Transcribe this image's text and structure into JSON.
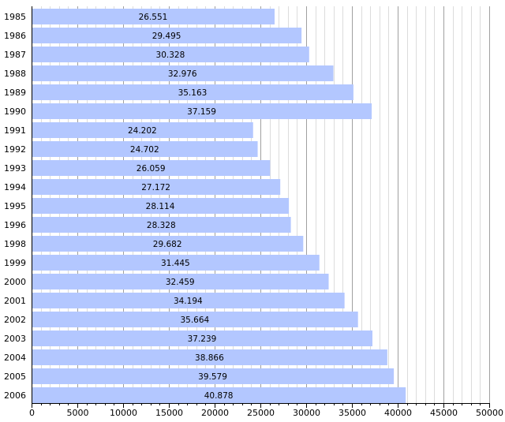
{
  "chart_data": {
    "type": "bar",
    "orientation": "horizontal",
    "categories": [
      "1985",
      "1986",
      "1987",
      "1988",
      "1989",
      "1990",
      "1991",
      "1992",
      "1993",
      "1994",
      "1995",
      "1996",
      "1998",
      "1999",
      "2000",
      "2001",
      "2002",
      "2003",
      "2004",
      "2005",
      "2006"
    ],
    "values": [
      26551,
      29495,
      30328,
      32976,
      35163,
      37159,
      24202,
      24702,
      26059,
      27172,
      28114,
      28328,
      29682,
      31445,
      32459,
      34194,
      35664,
      37239,
      38866,
      39579,
      40878
    ],
    "value_labels": [
      "26.551",
      "29.495",
      "30.328",
      "32.976",
      "35.163",
      "37.159",
      "24.202",
      "24.702",
      "26.059",
      "27.172",
      "28.114",
      "28.328",
      "29.682",
      "31.445",
      "32.459",
      "34.194",
      "35.664",
      "37.239",
      "38.866",
      "39.579",
      "40.878"
    ],
    "xlim": [
      0,
      50000
    ],
    "x_major_ticks": [
      0,
      5000,
      10000,
      15000,
      20000,
      25000,
      30000,
      35000,
      40000,
      45000,
      50000
    ],
    "x_tick_labels": [
      "0",
      "5000",
      "10000",
      "15000",
      "20000",
      "25000",
      "30000",
      "35000",
      "40000",
      "45000",
      "50000"
    ],
    "x_minor_step": 1000,
    "grid": true,
    "bar_color": "#b3c7ff",
    "major_grid_color": "#a0a0a0",
    "minor_grid_color": "#dcdcdc",
    "title": "",
    "xlabel": "",
    "ylabel": ""
  }
}
